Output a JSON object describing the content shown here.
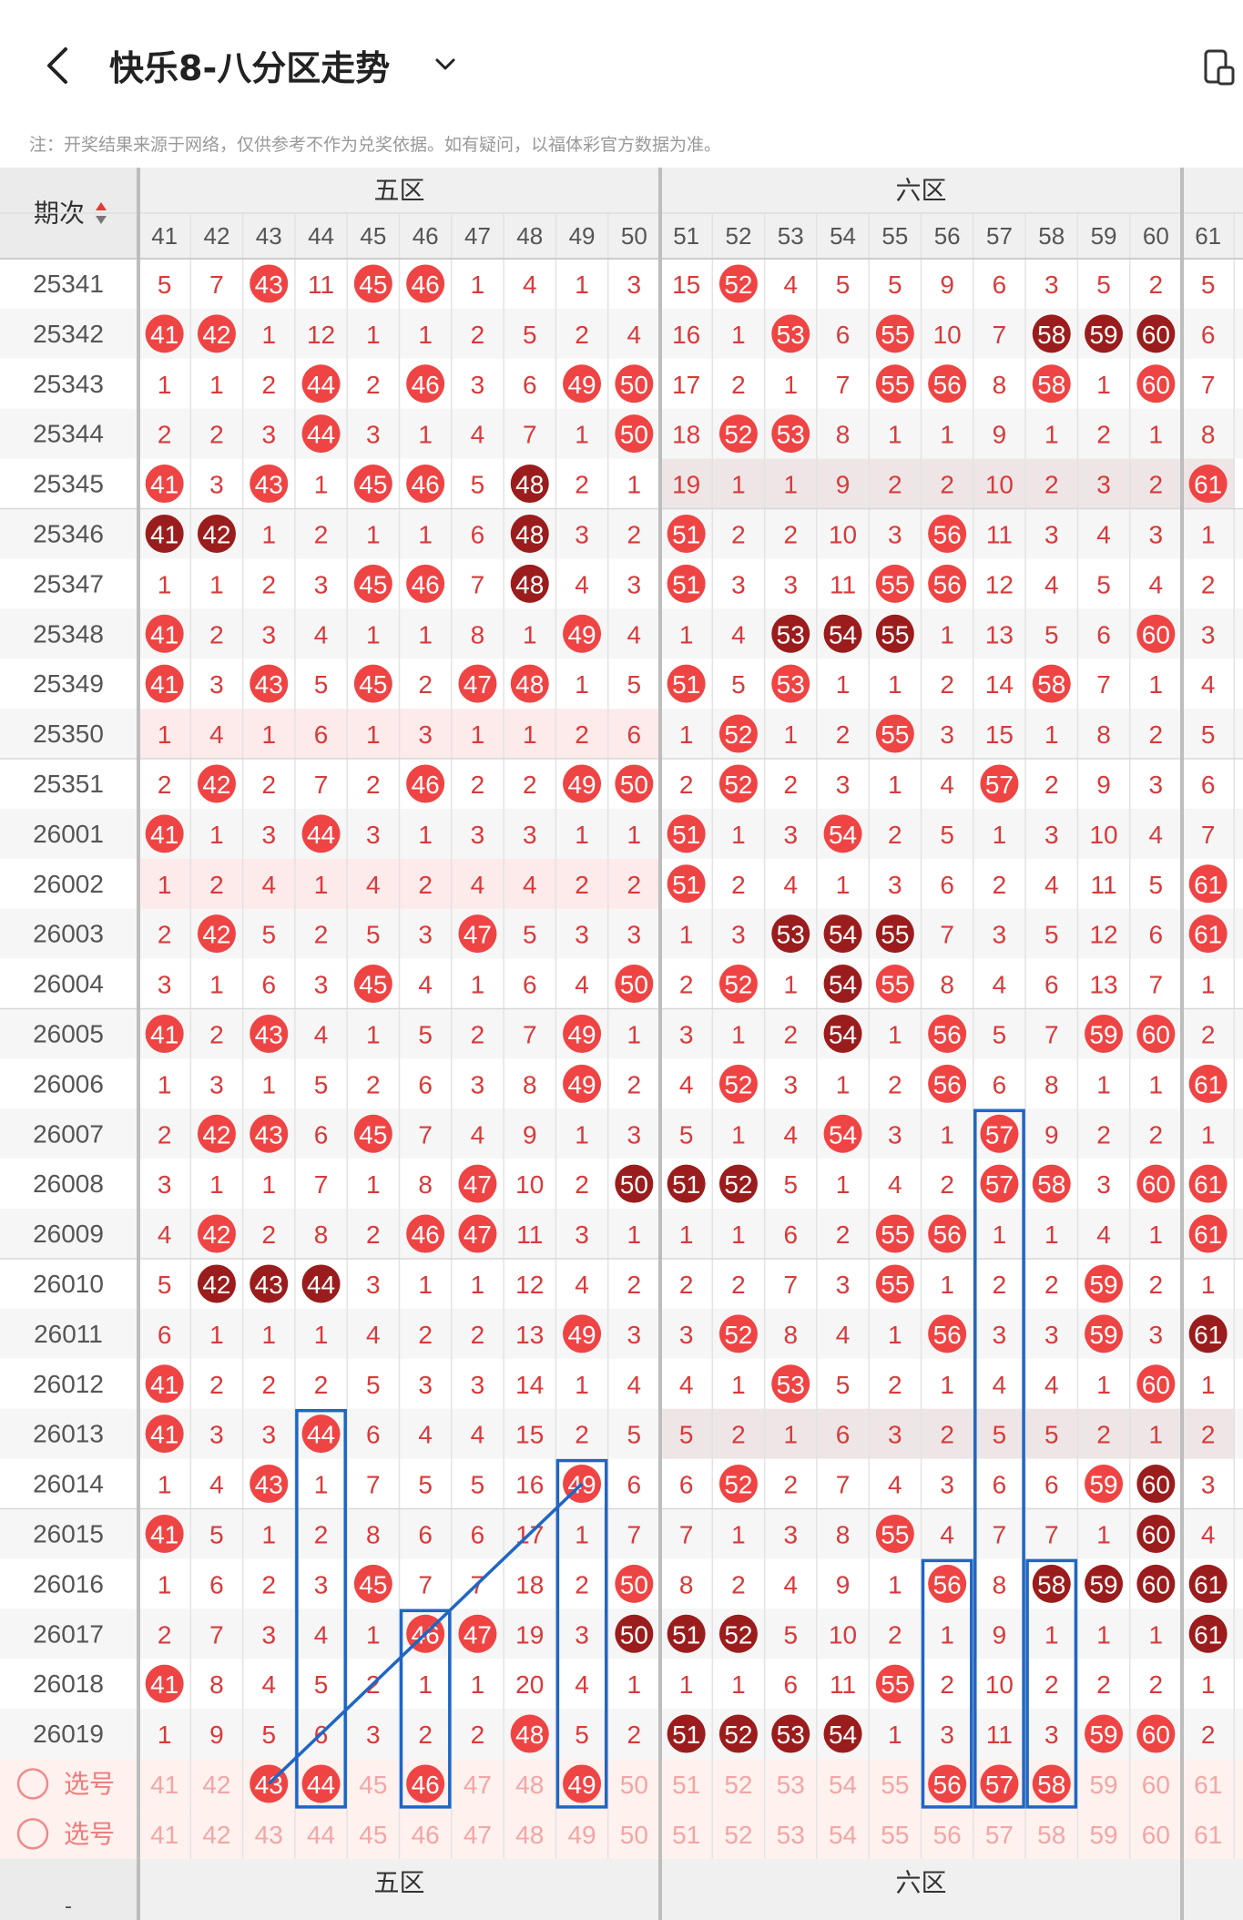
{
  "header": {
    "title": "快乐8-八分区走势"
  },
  "note": "注：开奖结果来源于网络，仅供参考不作为兑奖依据。如有疑问，以福体彩官方数据为准。",
  "table": {
    "period_header": "期次",
    "zones": [
      {
        "name": "五区",
        "numbers": [
          41,
          42,
          43,
          44,
          45,
          46,
          47,
          48,
          49,
          50
        ]
      },
      {
        "name": "六区",
        "numbers": [
          51,
          52,
          53,
          54,
          55,
          56,
          57,
          58,
          59,
          60
        ]
      }
    ],
    "extra_column": 61,
    "select_label": "选号",
    "select_rows": 2,
    "select_row1_selected": [
      43,
      44,
      46,
      49,
      56,
      57,
      58
    ],
    "colors": {
      "hit": "#ef4444",
      "hit_dark": "#9b1c1c",
      "miss_text": "#d93a3a",
      "period_text": "#555555",
      "selected_fill": "#ef4444",
      "unselected_text": "#f2a6a6",
      "select_bg": "#fff1ee",
      "annotation": "#1f66c4",
      "header_bg": "#f0f0f0"
    },
    "rows": [
      {
        "period": "25341",
        "cells": [
          5,
          7,
          43,
          11,
          45,
          46,
          1,
          4,
          1,
          3,
          15,
          52,
          4,
          5,
          5,
          9,
          6,
          3,
          5,
          2,
          5
        ]
      },
      {
        "period": "25342",
        "cells": [
          41,
          42,
          1,
          12,
          1,
          1,
          2,
          5,
          2,
          4,
          16,
          1,
          53,
          6,
          55,
          10,
          7,
          "D58",
          "D59",
          "D60",
          6
        ]
      },
      {
        "period": "25343",
        "cells": [
          1,
          1,
          2,
          44,
          2,
          46,
          3,
          6,
          49,
          50,
          17,
          2,
          1,
          7,
          55,
          56,
          8,
          58,
          1,
          60,
          7
        ]
      },
      {
        "period": "25344",
        "cells": [
          2,
          2,
          3,
          44,
          3,
          1,
          4,
          7,
          1,
          50,
          18,
          52,
          53,
          8,
          1,
          1,
          9,
          1,
          2,
          1,
          8
        ]
      },
      {
        "period": "25345",
        "cells": [
          41,
          3,
          43,
          1,
          45,
          46,
          5,
          "D48",
          2,
          1,
          19,
          1,
          1,
          9,
          2,
          2,
          10,
          2,
          3,
          2,
          61
        ]
      },
      {
        "period": "25346",
        "cells": [
          "D41",
          "D42",
          1,
          2,
          1,
          1,
          6,
          "D48",
          3,
          2,
          51,
          2,
          2,
          10,
          3,
          56,
          11,
          3,
          4,
          3,
          1
        ]
      },
      {
        "period": "25347",
        "cells": [
          1,
          1,
          2,
          3,
          45,
          46,
          7,
          "D48",
          4,
          3,
          51,
          3,
          3,
          11,
          55,
          56,
          12,
          4,
          5,
          4,
          2
        ]
      },
      {
        "period": "25348",
        "cells": [
          41,
          2,
          3,
          4,
          1,
          1,
          8,
          1,
          49,
          4,
          1,
          4,
          "D53",
          "D54",
          "D55",
          1,
          13,
          5,
          6,
          60,
          3
        ]
      },
      {
        "period": "25349",
        "cells": [
          41,
          3,
          43,
          5,
          45,
          2,
          47,
          48,
          1,
          5,
          51,
          5,
          53,
          1,
          1,
          2,
          14,
          58,
          7,
          1,
          4
        ]
      },
      {
        "period": "25350",
        "cells": [
          1,
          4,
          1,
          6,
          1,
          3,
          1,
          1,
          2,
          6,
          1,
          52,
          1,
          2,
          55,
          3,
          15,
          1,
          8,
          2,
          5
        ]
      },
      {
        "period": "25351",
        "cells": [
          2,
          42,
          2,
          7,
          2,
          46,
          2,
          2,
          49,
          50,
          2,
          52,
          2,
          3,
          1,
          4,
          57,
          2,
          9,
          3,
          6
        ]
      },
      {
        "period": "26001",
        "cells": [
          41,
          1,
          3,
          44,
          3,
          1,
          3,
          3,
          1,
          1,
          51,
          1,
          3,
          54,
          2,
          5,
          1,
          3,
          10,
          4,
          7
        ]
      },
      {
        "period": "26002",
        "cells": [
          1,
          2,
          4,
          1,
          4,
          2,
          4,
          4,
          2,
          2,
          51,
          2,
          4,
          1,
          3,
          6,
          2,
          4,
          11,
          5,
          61
        ]
      },
      {
        "period": "26003",
        "cells": [
          2,
          42,
          5,
          2,
          5,
          3,
          47,
          5,
          3,
          3,
          1,
          3,
          "D53",
          "D54",
          "D55",
          7,
          3,
          5,
          12,
          6,
          61
        ]
      },
      {
        "period": "26004",
        "cells": [
          3,
          1,
          6,
          3,
          45,
          4,
          1,
          6,
          4,
          50,
          2,
          52,
          1,
          "D54",
          55,
          8,
          4,
          6,
          13,
          7,
          1
        ]
      },
      {
        "period": "26005",
        "cells": [
          41,
          2,
          43,
          4,
          1,
          5,
          2,
          7,
          49,
          1,
          3,
          1,
          2,
          "D54",
          1,
          56,
          5,
          7,
          59,
          60,
          2
        ]
      },
      {
        "period": "26006",
        "cells": [
          1,
          3,
          1,
          5,
          2,
          6,
          3,
          8,
          49,
          2,
          4,
          52,
          3,
          1,
          2,
          56,
          6,
          8,
          1,
          1,
          61
        ]
      },
      {
        "period": "26007",
        "cells": [
          2,
          42,
          43,
          6,
          45,
          7,
          4,
          9,
          1,
          3,
          5,
          1,
          4,
          54,
          3,
          1,
          57,
          9,
          2,
          2,
          1
        ]
      },
      {
        "period": "26008",
        "cells": [
          3,
          1,
          1,
          7,
          1,
          8,
          47,
          10,
          2,
          "D50",
          "D51",
          "D52",
          5,
          1,
          4,
          2,
          57,
          58,
          3,
          60,
          61
        ]
      },
      {
        "period": "26009",
        "cells": [
          4,
          42,
          2,
          8,
          2,
          46,
          47,
          11,
          3,
          1,
          1,
          1,
          6,
          2,
          55,
          56,
          1,
          1,
          4,
          1,
          61
        ]
      },
      {
        "period": "26010",
        "cells": [
          5,
          "D42",
          "D43",
          "D44",
          3,
          1,
          1,
          12,
          4,
          2,
          2,
          2,
          7,
          3,
          55,
          1,
          2,
          2,
          59,
          2,
          1
        ]
      },
      {
        "period": "26011",
        "cells": [
          6,
          1,
          1,
          1,
          4,
          2,
          2,
          13,
          49,
          3,
          3,
          52,
          8,
          4,
          1,
          56,
          3,
          3,
          59,
          3,
          "D61"
        ]
      },
      {
        "period": "26012",
        "cells": [
          41,
          2,
          2,
          2,
          5,
          3,
          3,
          14,
          1,
          4,
          4,
          1,
          53,
          5,
          2,
          1,
          4,
          4,
          1,
          60,
          1
        ]
      },
      {
        "period": "26013",
        "cells": [
          41,
          3,
          3,
          44,
          6,
          4,
          4,
          15,
          2,
          5,
          5,
          2,
          1,
          6,
          3,
          2,
          5,
          5,
          2,
          1,
          2
        ]
      },
      {
        "period": "26014",
        "cells": [
          1,
          4,
          43,
          1,
          7,
          5,
          5,
          16,
          49,
          6,
          6,
          52,
          2,
          7,
          4,
          3,
          6,
          6,
          59,
          "D60",
          3
        ]
      },
      {
        "period": "26015",
        "cells": [
          41,
          5,
          1,
          2,
          8,
          6,
          6,
          17,
          1,
          7,
          7,
          1,
          3,
          8,
          55,
          4,
          7,
          7,
          1,
          "D60",
          4
        ]
      },
      {
        "period": "26016",
        "cells": [
          1,
          6,
          2,
          3,
          45,
          7,
          7,
          18,
          2,
          50,
          8,
          2,
          4,
          9,
          1,
          56,
          8,
          "D58",
          "D59",
          "D60",
          "D61"
        ]
      },
      {
        "period": "26017",
        "cells": [
          2,
          7,
          3,
          4,
          1,
          46,
          47,
          19,
          3,
          "D50",
          "D51",
          "D52",
          5,
          10,
          2,
          1,
          9,
          1,
          1,
          1,
          "D61"
        ]
      },
      {
        "period": "26018",
        "cells": [
          41,
          8,
          4,
          5,
          2,
          1,
          1,
          20,
          4,
          1,
          1,
          1,
          6,
          11,
          55,
          2,
          10,
          2,
          2,
          2,
          1
        ]
      },
      {
        "period": "26019",
        "cells": [
          1,
          9,
          5,
          6,
          3,
          2,
          2,
          48,
          5,
          2,
          "D51",
          "D52",
          "D53",
          "D54",
          1,
          3,
          11,
          3,
          59,
          60,
          2
        ]
      }
    ],
    "shaded_rows": [
      {
        "row": 4,
        "from_col": 10,
        "to_col": 20,
        "tone": "gray"
      },
      {
        "row": 9,
        "from_col": 0,
        "to_col": 9,
        "tone": "pink"
      },
      {
        "row": 12,
        "from_col": 0,
        "to_col": 9,
        "tone": "pink"
      },
      {
        "row": 23,
        "from_col": 10,
        "to_col": 20,
        "tone": "gray"
      }
    ],
    "annotations": {
      "boxes": [
        {
          "col": 3,
          "from_row": 23,
          "to_row": 30
        },
        {
          "col": 5,
          "from_row": 27,
          "to_row": 30
        },
        {
          "col": 8,
          "from_row": 24,
          "to_row": 30
        },
        {
          "col": 15,
          "from_row": 26,
          "to_row": 30
        },
        {
          "col": 16,
          "from_row": 17,
          "to_row": 30
        },
        {
          "col": 17,
          "from_row": 26,
          "to_row": 30
        }
      ],
      "line": {
        "from": {
          "col": 2,
          "row": 30
        },
        "to": {
          "col": 8,
          "row": 24
        }
      }
    }
  }
}
